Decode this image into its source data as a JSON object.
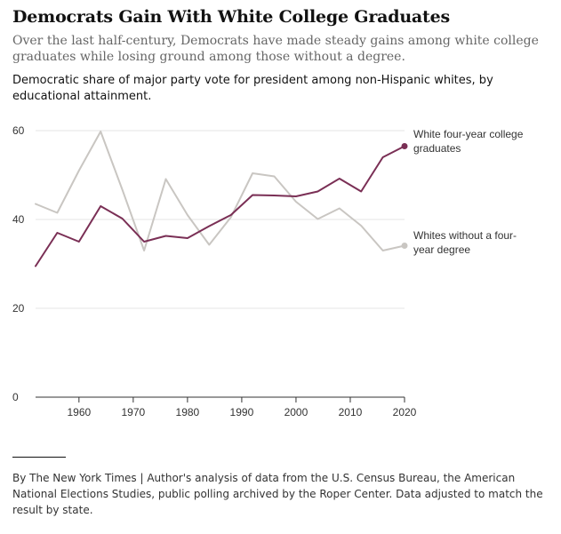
{
  "header": {
    "title": "Democrats Gain With White College Graduates",
    "subtitle": "Over the last half-century, Democrats have made steady gains among white college graduates while losing ground among those without a degree.",
    "chart_description": "Democratic share of major party vote for president among non-Hispanic whites, by educational attainment."
  },
  "footer": {
    "source": "By The New York Times | Author's analysis of data from the U.S. Census Bureau, the American National Elections Studies, public polling archived by the Roper Center. Data adjusted to match the result by state."
  },
  "colors": {
    "college": "#7a2f55",
    "noncollege": "#c9c6c2",
    "grid": "#e6e6e6",
    "axis": "#333333"
  },
  "chart_data": {
    "type": "line",
    "title": "Democrats Gain With White College Graduates",
    "xlabel": "",
    "ylabel": "",
    "xlim": [
      1952,
      2020
    ],
    "ylim": [
      0,
      60
    ],
    "x_ticks": [
      1960,
      1970,
      1980,
      1990,
      2000,
      2010,
      2020
    ],
    "y_ticks": [
      0,
      20,
      40,
      60
    ],
    "grid": "horizontal",
    "x": [
      1952,
      1956,
      1960,
      1964,
      1968,
      1972,
      1976,
      1980,
      1984,
      1988,
      1992,
      1996,
      2000,
      2004,
      2008,
      2012,
      2016,
      2020
    ],
    "series": [
      {
        "name": "White four-year college graduates",
        "values": [
          29.5,
          37,
          35,
          43,
          40.2,
          35,
          36.3,
          35.8,
          38.5,
          41,
          45.5,
          45.4,
          45.2,
          46.3,
          49.2,
          46.3,
          54,
          56.5
        ]
      },
      {
        "name": "Whites without a four-year degree",
        "values": [
          43.5,
          41.5,
          51,
          59.8,
          46.7,
          33,
          49.1,
          41,
          34.3,
          40.5,
          50.4,
          49.7,
          44,
          40.1,
          42.5,
          38.6,
          33,
          34.1
        ]
      }
    ]
  }
}
